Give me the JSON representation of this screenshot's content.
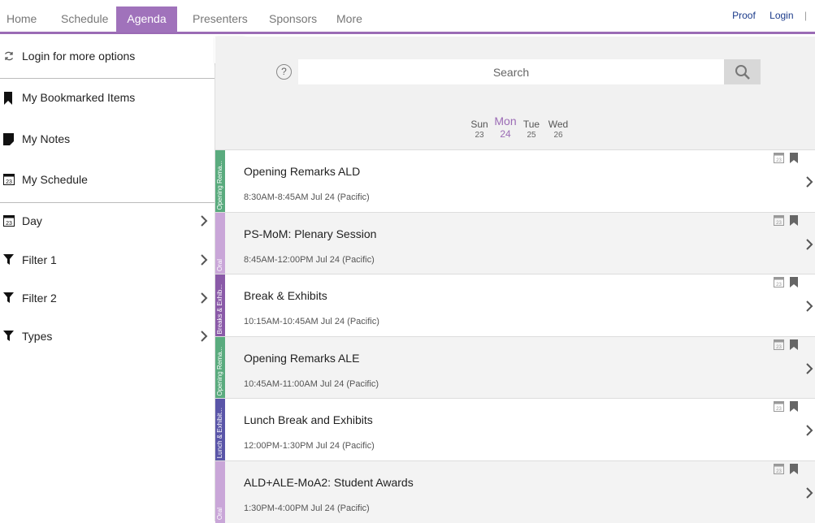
{
  "nav": {
    "tabs": [
      "Home",
      "Schedule",
      "Agenda",
      "Presenters",
      "Sponsors",
      "More"
    ],
    "active": "Agenda",
    "links": [
      "Proof",
      "Login"
    ],
    "separator": "|"
  },
  "sidebar": {
    "login": "Login for more options",
    "bookmarks": "My Bookmarked Items",
    "notes": "My Notes",
    "schedule": "My Schedule",
    "schedule_icon_text": "23",
    "day": "Day",
    "filter1": "Filter 1",
    "filter2": "Filter 2",
    "types": "Types"
  },
  "search": {
    "placeholder": "Search",
    "help": "?"
  },
  "days": [
    {
      "name": "Sun",
      "num": "23"
    },
    {
      "name": "Mon",
      "num": "24"
    },
    {
      "name": "Tue",
      "num": "25"
    },
    {
      "name": "Wed",
      "num": "26"
    }
  ],
  "active_day": "Mon",
  "sessions": [
    {
      "title": "Opening Remarks ALD",
      "time": "8:30AM-8:45AM Jul 24 (Pacific)",
      "tag": "Opening Rema...",
      "color": "#5aab7e"
    },
    {
      "title": "PS-MoM: Plenary Session",
      "time": "8:45AM-12:00PM Jul 24 (Pacific)",
      "tag": "Oral",
      "color": "#c9a6d8"
    },
    {
      "title": "Break & Exhibits",
      "time": "10:15AM-10:45AM Jul 24 (Pacific)",
      "tag": "Breaks & Exhib...",
      "color": "#8a5aa8"
    },
    {
      "title": "Opening Remarks ALE",
      "time": "10:45AM-11:00AM Jul 24 (Pacific)",
      "tag": "Opening Rema...",
      "color": "#5aab7e"
    },
    {
      "title": "Lunch Break and Exhibits",
      "time": "12:00PM-1:30PM Jul 24 (Pacific)",
      "tag": "Lunch & Exhibit...",
      "color": "#5a55a8"
    },
    {
      "title": "ALD+ALE-MoA2: Student Awards",
      "time": "1:30PM-4:00PM Jul 24 (Pacific)",
      "tag": "Oral",
      "color": "#c9a6d8"
    }
  ],
  "cal_icon_text": "23",
  "colors": {
    "accent": "#9b6bb5",
    "link": "#1a3a8a"
  }
}
